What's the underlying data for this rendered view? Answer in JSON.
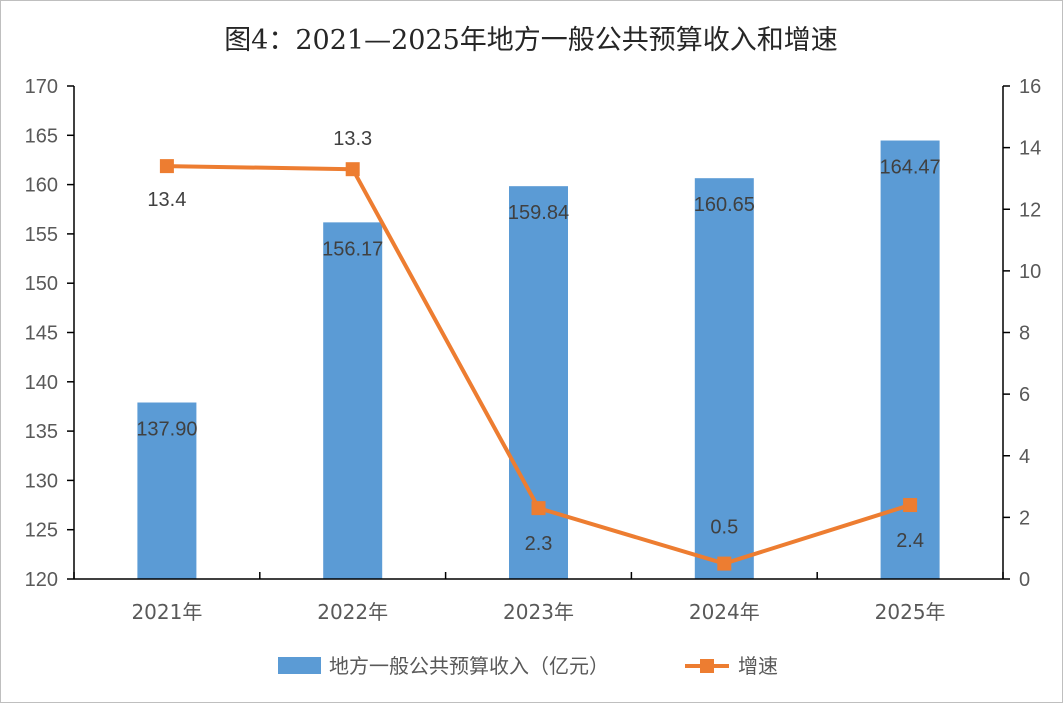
{
  "chart_data": {
    "type": "bar+line",
    "title": "图4：2021—2025年地方一般公共预算收入和增速",
    "categories": [
      "2021年",
      "2022年",
      "2023年",
      "2024年",
      "2025年"
    ],
    "series": [
      {
        "name": "地方一般公共预算收入（亿元）",
        "type": "bar",
        "axis": "left",
        "values": [
          137.9,
          156.17,
          159.84,
          160.65,
          164.47
        ],
        "labels": [
          "137.90",
          "156.17",
          "159.84",
          "160.65",
          "164.47"
        ],
        "color": "#5b9bd5"
      },
      {
        "name": "增速",
        "type": "line",
        "axis": "right",
        "values": [
          13.4,
          13.3,
          2.3,
          0.5,
          2.4
        ],
        "labels": [
          "13.4",
          "13.3",
          "2.3",
          "0.5",
          "2.4"
        ],
        "color": "#ed7d31"
      }
    ],
    "y_left": {
      "min": 120,
      "max": 170,
      "step": 5
    },
    "y_right": {
      "min": 0,
      "max": 16,
      "step": 2
    },
    "legend_position": "bottom",
    "grid": false
  }
}
